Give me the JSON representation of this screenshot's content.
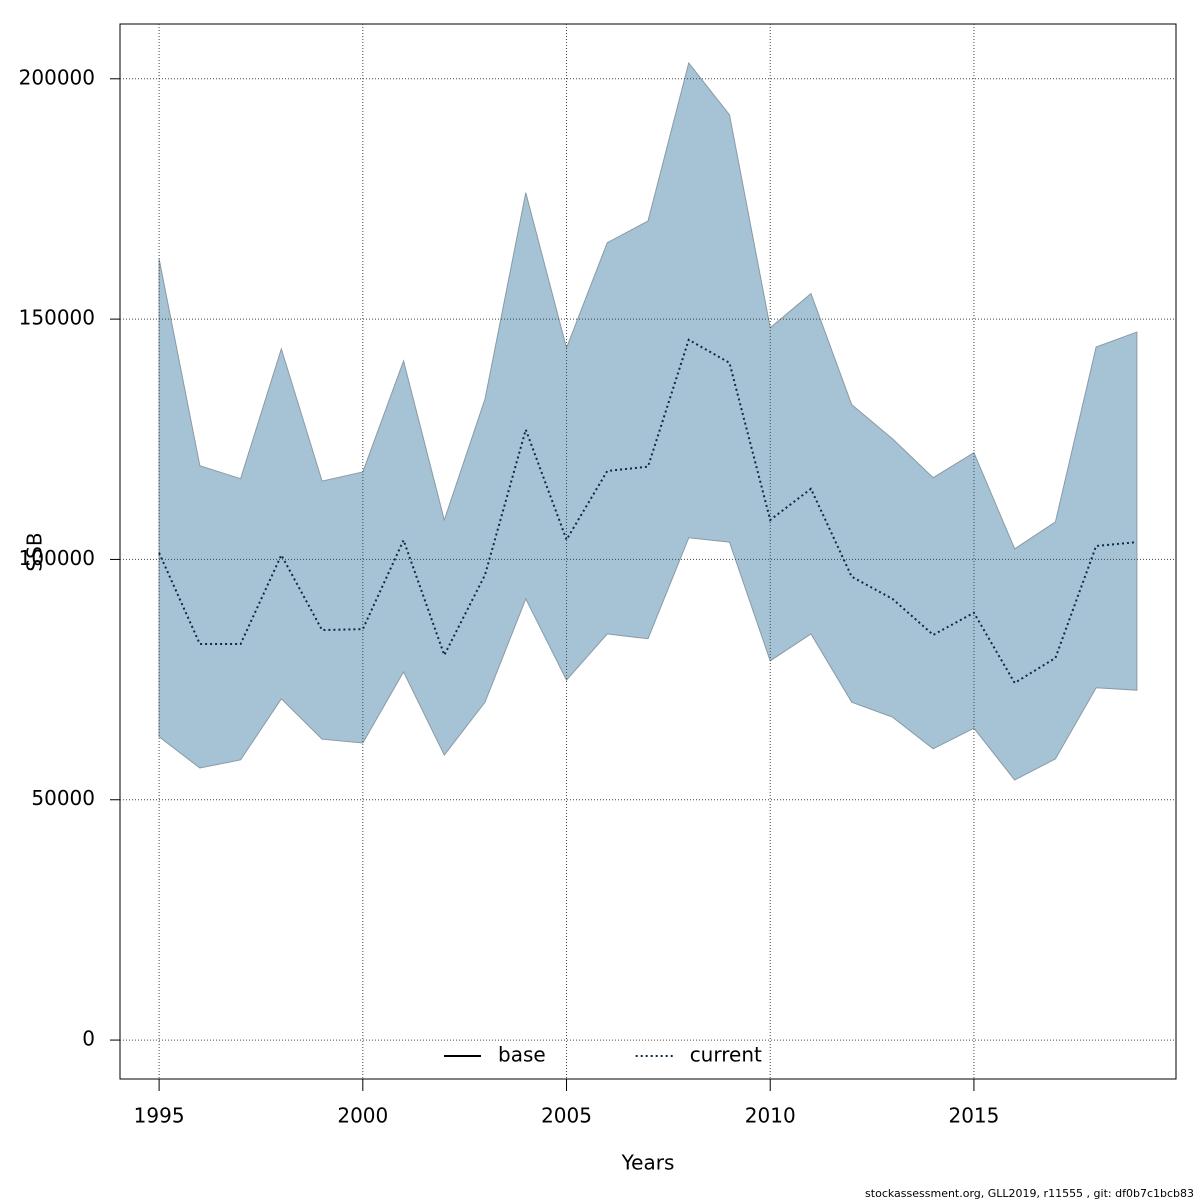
{
  "chart_data": {
    "type": "line",
    "x": [
      1995,
      1996,
      1997,
      1998,
      1999,
      2000,
      2001,
      2002,
      2003,
      2004,
      2005,
      2006,
      2007,
      2008,
      2009,
      2010,
      2011,
      2012,
      2013,
      2014,
      2015,
      2016,
      2017,
      2018,
      2019
    ],
    "series": [
      {
        "name": "base",
        "color": "#000000",
        "dash": "solid",
        "values": [
          null,
          null,
          null,
          null,
          null,
          null,
          null,
          null,
          null,
          null,
          null,
          null,
          null,
          null,
          null,
          null,
          null,
          null,
          null,
          null,
          null,
          null,
          null,
          null,
          null
        ]
      },
      {
        "name": "current",
        "color": "#0a2a45",
        "dash": "dotted",
        "values": [
          101350,
          82400,
          82400,
          100900,
          85300,
          85500,
          104000,
          80100,
          96800,
          127000,
          104100,
          118400,
          119300,
          145700,
          140900,
          108200,
          114700,
          96400,
          91800,
          84300,
          88900,
          74300,
          79500,
          102800,
          103600
        ],
        "upper": [
          162500,
          119500,
          116800,
          143800,
          116300,
          118200,
          141300,
          108200,
          133400,
          176300,
          144000,
          165900,
          170400,
          203300,
          192500,
          148200,
          155300,
          132200,
          125100,
          117000,
          122200,
          102200,
          107800,
          144200,
          147300
        ],
        "lower": [
          63100,
          56600,
          58300,
          71000,
          62600,
          61800,
          76600,
          59300,
          70300,
          91800,
          74900,
          84500,
          83500,
          104500,
          103600,
          78900,
          84500,
          70300,
          67200,
          60600,
          64900,
          54100,
          58500,
          73300,
          72800
        ],
        "band_color": "#a5c3d4"
      }
    ],
    "xlabel": "Years",
    "ylabel": "SSB",
    "xlim": [
      1994.04,
      2019.96
    ],
    "ylim": [
      -8100,
      211400
    ],
    "xticks": [
      1995,
      2000,
      2005,
      2010,
      2015
    ],
    "yticks": [
      0,
      50000,
      100000,
      150000,
      200000
    ],
    "grid": true,
    "legend": "bottom",
    "footer": "stockassessment.org, GLL2019, r11555 , git: df0b7c1bcb83"
  }
}
